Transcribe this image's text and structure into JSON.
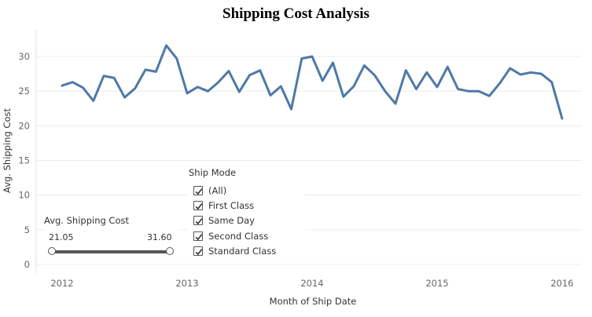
{
  "chart_data": {
    "type": "line",
    "title": "Shipping Cost Analysis",
    "xlabel": "Month of Ship Date",
    "ylabel": "Avg. Shipping Cost",
    "x_ticks": [
      "2012",
      "2013",
      "2014",
      "2015",
      "2016"
    ],
    "y_ticks": [
      "0",
      "5",
      "10",
      "15",
      "20",
      "25",
      "30"
    ],
    "ylim": [
      0,
      33
    ],
    "grid": true,
    "series": [
      {
        "color": "#4e79a7",
        "x": [
          "2012-01",
          "2012-02",
          "2012-03",
          "2012-04",
          "2012-05",
          "2012-06",
          "2012-07",
          "2012-08",
          "2012-09",
          "2012-10",
          "2012-11",
          "2012-12",
          "2013-01",
          "2013-02",
          "2013-03",
          "2013-04",
          "2013-05",
          "2013-06",
          "2013-07",
          "2013-08",
          "2013-09",
          "2013-10",
          "2013-11",
          "2013-12",
          "2014-01",
          "2014-02",
          "2014-03",
          "2014-04",
          "2014-05",
          "2014-06",
          "2014-07",
          "2014-08",
          "2014-09",
          "2014-10",
          "2014-11",
          "2014-12",
          "2015-01",
          "2015-02",
          "2015-03",
          "2015-04",
          "2015-05",
          "2015-06",
          "2015-07",
          "2015-08",
          "2015-09",
          "2015-10",
          "2015-11",
          "2015-12",
          "2016-01"
        ],
        "values": [
          25.8,
          26.3,
          25.5,
          23.6,
          27.2,
          26.9,
          24.1,
          25.4,
          28.1,
          27.8,
          31.6,
          29.7,
          24.7,
          25.6,
          25.0,
          26.3,
          27.9,
          24.9,
          27.3,
          28.0,
          24.4,
          25.7,
          22.4,
          29.7,
          30.0,
          26.5,
          29.1,
          24.2,
          25.7,
          28.7,
          27.3,
          25.0,
          23.2,
          28.0,
          25.3,
          27.7,
          25.6,
          28.5,
          25.3,
          25.0,
          25.0,
          24.3,
          26.1,
          28.3,
          27.4,
          27.7,
          27.5,
          26.3,
          21.05
        ]
      }
    ]
  },
  "filter": {
    "title": "Ship Mode",
    "items": [
      {
        "label": "(All)",
        "checked": true
      },
      {
        "label": "First Class",
        "checked": true
      },
      {
        "label": "Same Day",
        "checked": true
      },
      {
        "label": "Second Class",
        "checked": true
      },
      {
        "label": "Standard Class",
        "checked": true
      }
    ]
  },
  "range_slider": {
    "title": "Avg. Shipping Cost",
    "min_label": "21.05",
    "max_label": "31.60"
  }
}
